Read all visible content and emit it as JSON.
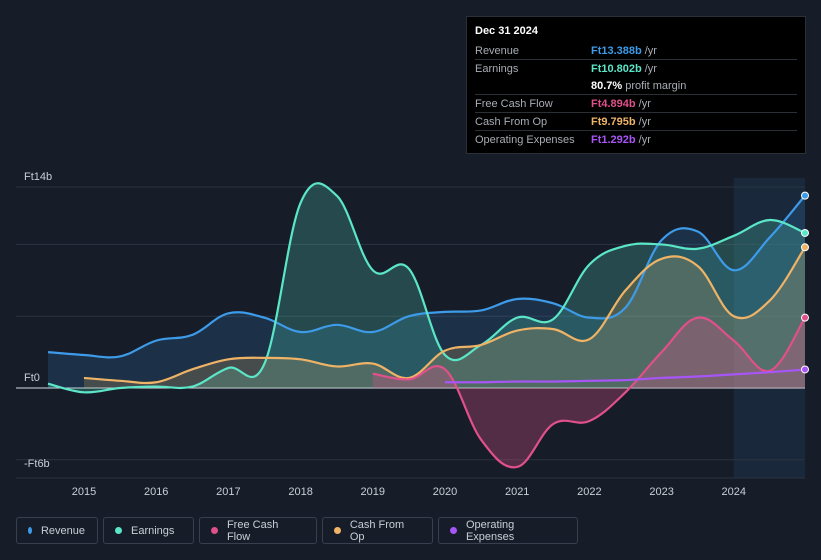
{
  "tooltip": {
    "date": "Dec 31 2024",
    "rows": [
      {
        "label": "Revenue",
        "value": "Ft13.388b",
        "unit": "/yr",
        "color": "#3d9be9"
      },
      {
        "label": "Earnings",
        "value": "Ft10.802b",
        "unit": "/yr",
        "color": "#5ce6c8"
      },
      {
        "label": "",
        "value": "80.7%",
        "unit": "profit margin",
        "color": "#ffffff"
      },
      {
        "label": "Free Cash Flow",
        "value": "Ft4.894b",
        "unit": "/yr",
        "color": "#e0508a"
      },
      {
        "label": "Cash From Op",
        "value": "Ft9.795b",
        "unit": "/yr",
        "color": "#eeb366"
      },
      {
        "label": "Operating Expenses",
        "value": "Ft1.292b",
        "unit": "/yr",
        "color": "#a855f7"
      }
    ]
  },
  "legend": [
    {
      "label": "Revenue",
      "color": "#3d9be9"
    },
    {
      "label": "Earnings",
      "color": "#5ce6c8"
    },
    {
      "label": "Free Cash Flow",
      "color": "#e0508a"
    },
    {
      "label": "Cash From Op",
      "color": "#eeb366"
    },
    {
      "label": "Operating Expenses",
      "color": "#a855f7"
    }
  ],
  "chart_data": {
    "type": "area",
    "title": "",
    "y_unit": "Ft b",
    "ylim": [
      -6,
      14
    ],
    "xlim": [
      2014.5,
      2025.0
    ],
    "y_tick_labels": [
      {
        "value": 14,
        "label": "Ft14b"
      },
      {
        "value": 0,
        "label": "Ft0"
      },
      {
        "value": -6,
        "label": "-Ft6b"
      }
    ],
    "gridlines": [
      14,
      10,
      5,
      0,
      -5
    ],
    "x_ticks": [
      2015,
      2016,
      2017,
      2018,
      2019,
      2020,
      2021,
      2022,
      2023,
      2024
    ],
    "forecast_start": 2024.0,
    "series": [
      {
        "name": "Revenue",
        "color": "#3d9be9",
        "x": [
          2014.5,
          2015.0,
          2015.5,
          2016.0,
          2016.5,
          2017.0,
          2017.5,
          2018.0,
          2018.5,
          2019.0,
          2019.5,
          2020.0,
          2020.5,
          2021.0,
          2021.5,
          2022.0,
          2022.5,
          2023.0,
          2023.5,
          2024.0,
          2024.5,
          2025.0
        ],
        "values": [
          2.5,
          2.3,
          2.2,
          3.3,
          3.7,
          5.2,
          4.9,
          3.9,
          4.4,
          3.9,
          5.0,
          5.3,
          5.4,
          6.2,
          5.9,
          4.9,
          5.6,
          10.3,
          10.9,
          8.2,
          10.5,
          13.4
        ]
      },
      {
        "name": "Earnings",
        "color": "#5ce6c8",
        "x": [
          2014.5,
          2015.0,
          2015.5,
          2016.0,
          2016.5,
          2017.0,
          2017.5,
          2018.0,
          2018.5,
          2019.0,
          2019.5,
          2020.0,
          2020.5,
          2021.0,
          2021.5,
          2022.0,
          2022.5,
          2023.0,
          2023.5,
          2024.0,
          2024.5,
          2025.0
        ],
        "values": [
          0.3,
          -0.3,
          0.0,
          0.1,
          0.1,
          1.4,
          1.7,
          12.9,
          13.4,
          8.2,
          8.3,
          2.3,
          3.0,
          4.9,
          4.8,
          8.6,
          9.9,
          10.0,
          9.7,
          10.6,
          11.7,
          10.8
        ]
      },
      {
        "name": "Free Cash Flow",
        "color": "#e0508a",
        "x": [
          2019.0,
          2019.5,
          2020.0,
          2020.5,
          2021.0,
          2021.5,
          2022.0,
          2022.5,
          2023.0,
          2023.5,
          2024.0,
          2024.5,
          2025.0
        ],
        "values": [
          1.0,
          0.6,
          1.3,
          -3.6,
          -5.5,
          -2.5,
          -2.3,
          -0.3,
          2.5,
          4.9,
          3.3,
          1.2,
          4.9
        ]
      },
      {
        "name": "Cash From Op",
        "color": "#eeb366",
        "x": [
          2015.0,
          2015.5,
          2016.0,
          2016.5,
          2017.0,
          2017.5,
          2018.0,
          2018.5,
          2019.0,
          2019.5,
          2020.0,
          2020.5,
          2021.0,
          2021.5,
          2022.0,
          2022.5,
          2023.0,
          2023.5,
          2024.0,
          2024.5,
          2025.0
        ],
        "values": [
          0.7,
          0.5,
          0.4,
          1.3,
          2.0,
          2.1,
          2.0,
          1.5,
          1.7,
          0.7,
          2.6,
          3.0,
          4.0,
          4.1,
          3.4,
          6.8,
          9.0,
          8.5,
          5.0,
          6.1,
          9.8
        ]
      },
      {
        "name": "Operating Expenses",
        "color": "#a855f7",
        "x": [
          2020.0,
          2020.5,
          2021.0,
          2021.5,
          2022.0,
          2022.5,
          2023.0,
          2023.5,
          2024.0,
          2024.5,
          2025.0
        ],
        "values": [
          0.4,
          0.4,
          0.45,
          0.45,
          0.5,
          0.55,
          0.7,
          0.8,
          0.95,
          1.1,
          1.29
        ]
      }
    ]
  }
}
